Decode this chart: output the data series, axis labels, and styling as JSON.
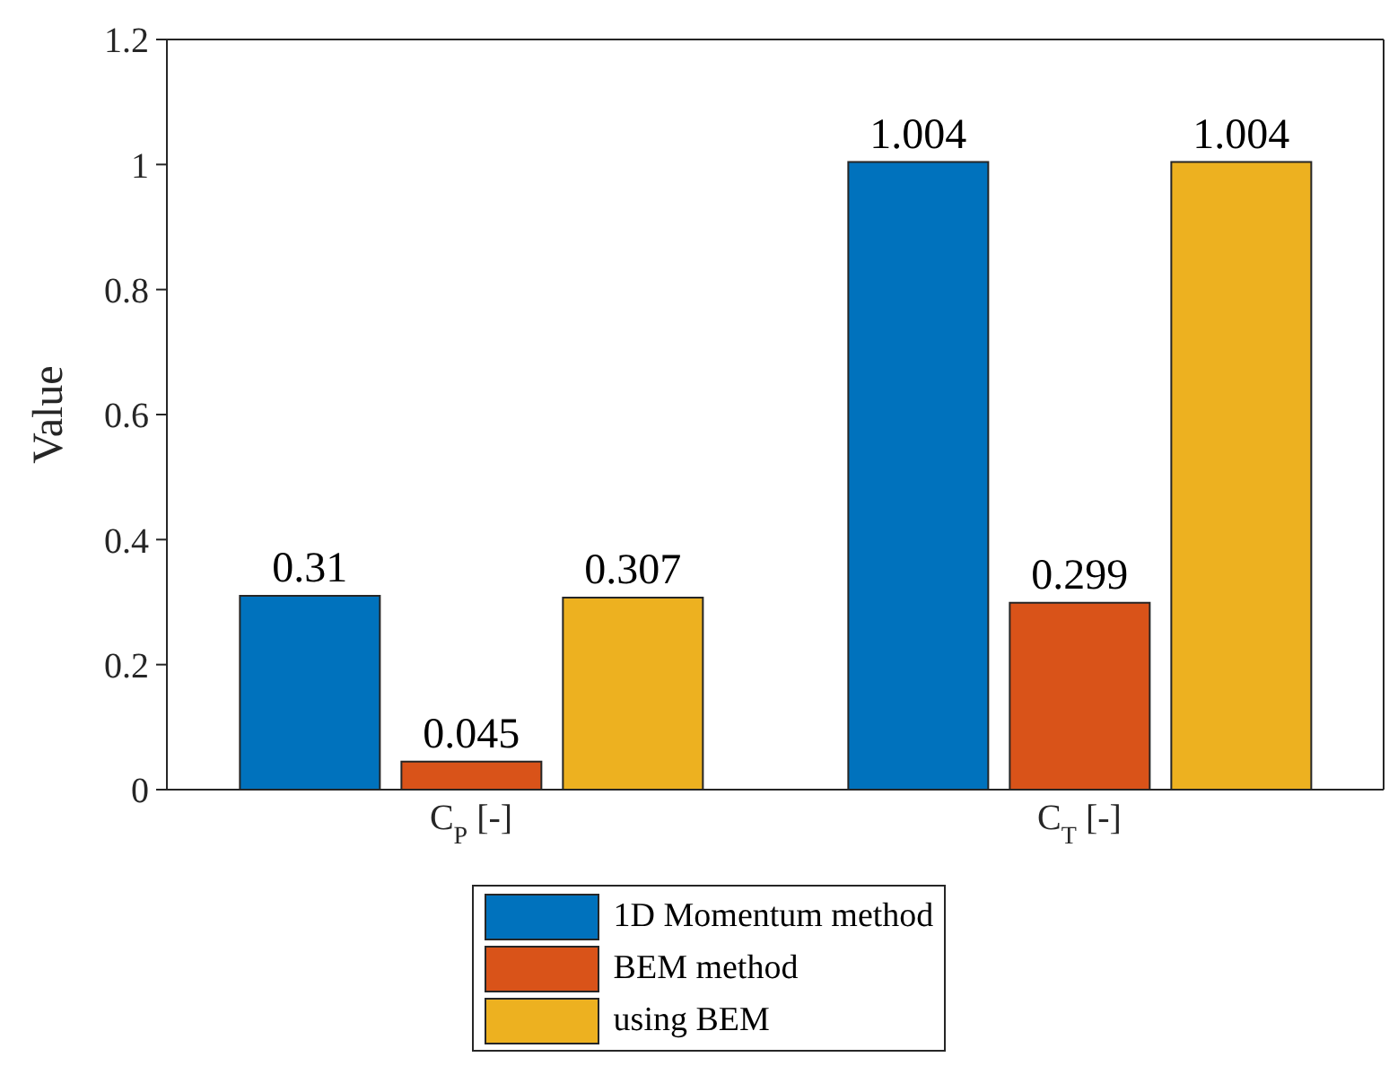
{
  "chart_data": {
    "type": "bar",
    "ylabel": "Value",
    "categories": [
      "C$_{P}$ [-]",
      "C$_{T}$ [-]"
    ],
    "series": [
      {
        "name": "1D Momentum method",
        "color": "#0072bd",
        "values": [
          0.31,
          1.004
        ]
      },
      {
        "name": "BEM method",
        "color": "#d95319",
        "values": [
          0.045,
          0.299
        ]
      },
      {
        "name": "using BEM",
        "color": "#edb120",
        "values": [
          0.307,
          1.004
        ]
      }
    ],
    "ylim": [
      0,
      1.2
    ],
    "yticks": [
      0,
      {
        "value": 0.2,
        "label": "0.2"
      },
      {
        "value": 0.4,
        "label": "0.4"
      },
      {
        "value": 0.6,
        "label": "0.6"
      },
      {
        "value": 0.8,
        "label": "0.8"
      },
      1,
      {
        "value": 1.2,
        "label": "1.2"
      }
    ],
    "data_labels": true,
    "legend": "bottom",
    "grid": false
  }
}
